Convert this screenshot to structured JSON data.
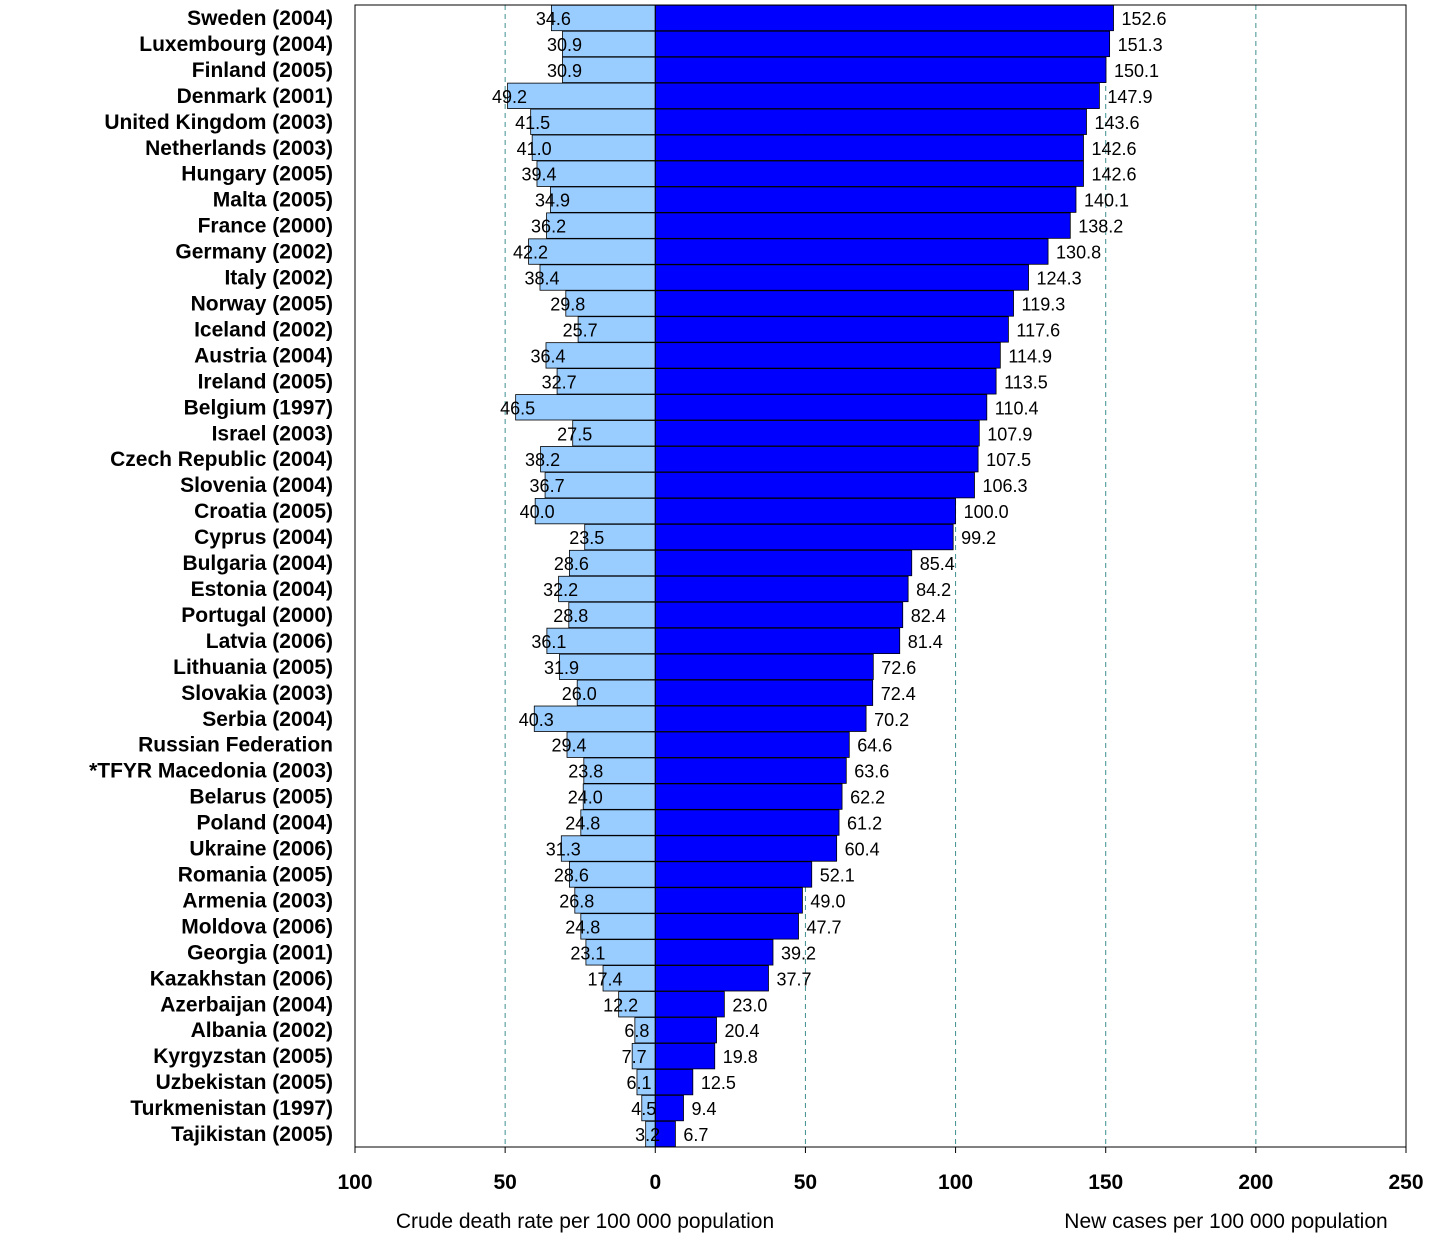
{
  "chart_data": {
    "type": "bar",
    "orientation": "horizontal-diverging",
    "categories": [
      "Sweden (2004)",
      "Luxembourg (2004)",
      "Finland (2005)",
      "Denmark (2001)",
      "United Kingdom (2003)",
      "Netherlands (2003)",
      "Hungary (2005)",
      "Malta (2005)",
      "France (2000)",
      "Germany (2002)",
      "Italy (2002)",
      "Norway (2005)",
      "Iceland (2002)",
      "Austria (2004)",
      "Ireland (2005)",
      "Belgium (1997)",
      "Israel (2003)",
      "Czech Republic (2004)",
      "Slovenia (2004)",
      "Croatia (2005)",
      "Cyprus (2004)",
      "Bulgaria (2004)",
      "Estonia (2004)",
      "Portugal (2000)",
      "Latvia (2006)",
      "Lithuania (2005)",
      "Slovakia (2003)",
      "Serbia (2004)",
      "Russian Federation",
      "*TFYR Macedonia (2003)",
      "Belarus (2005)",
      "Poland (2004)",
      "Ukraine (2006)",
      "Romania (2005)",
      "Armenia (2003)",
      "Moldova (2006)",
      "Georgia (2001)",
      "Kazakhstan (2006)",
      "Azerbaijan (2004)",
      "Albania (2002)",
      "Kyrgyzstan (2005)",
      "Uzbekistan (2005)",
      "Turkmenistan (1997)",
      "Tajikistan (2005)"
    ],
    "series": [
      {
        "name": "Crude death rate per 100 000 population",
        "side": "left",
        "color": "#99ccff",
        "values": [
          34.6,
          30.9,
          30.9,
          49.2,
          41.5,
          41.0,
          39.4,
          34.9,
          36.2,
          42.2,
          38.4,
          29.8,
          25.7,
          36.4,
          32.7,
          46.5,
          27.5,
          38.2,
          36.7,
          40.0,
          23.5,
          28.6,
          32.2,
          28.8,
          36.1,
          31.9,
          26.0,
          40.3,
          29.4,
          23.8,
          24.0,
          24.8,
          31.3,
          28.6,
          26.8,
          24.8,
          23.1,
          17.4,
          12.2,
          6.8,
          7.7,
          6.1,
          4.5,
          3.2
        ]
      },
      {
        "name": "New cases per 100 000 population",
        "side": "right",
        "color": "#0000ff",
        "values": [
          152.6,
          151.3,
          150.1,
          147.9,
          143.6,
          142.6,
          142.6,
          140.1,
          138.2,
          130.8,
          124.3,
          119.3,
          117.6,
          114.9,
          113.5,
          110.4,
          107.9,
          107.5,
          106.3,
          100.0,
          99.2,
          85.4,
          84.2,
          82.4,
          81.4,
          72.6,
          72.4,
          70.2,
          64.6,
          63.6,
          62.2,
          61.2,
          60.4,
          52.1,
          49.0,
          47.7,
          39.2,
          37.7,
          23.0,
          20.4,
          19.8,
          12.5,
          9.4,
          6.7
        ]
      }
    ],
    "x_ticks": [
      "100",
      "50",
      "0",
      "50",
      "100",
      "150",
      "200",
      "250"
    ],
    "xlim": [
      -100,
      250
    ],
    "xlabel_left": "Crude death rate per 100 000 population",
    "xlabel_right": "New cases per 100 000 population",
    "grid": "vertical dashed at 50-unit intervals"
  }
}
